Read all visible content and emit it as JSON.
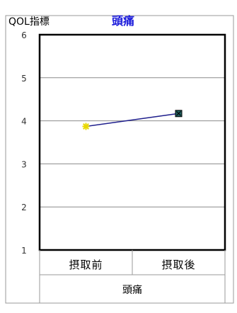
{
  "chart_data": {
    "type": "line",
    "title": "頭痛",
    "ylabel": "QOL指標",
    "xlabel": "",
    "group_label": "頭痛",
    "categories": [
      "摂取前",
      "摂取後"
    ],
    "series": [
      {
        "values": [
          3.87,
          4.17
        ]
      }
    ],
    "ylim": [
      1,
      6
    ],
    "yticks": [
      1,
      2,
      3,
      4,
      5,
      6
    ],
    "grid": true,
    "legend": "none",
    "colors": {
      "title": "#1a1adb",
      "line": "#1e1e8c",
      "marker_first": "#e8d800",
      "marker_second": "#1f5f5f",
      "grid": "#8c8c8c",
      "frame": "#000000"
    }
  }
}
